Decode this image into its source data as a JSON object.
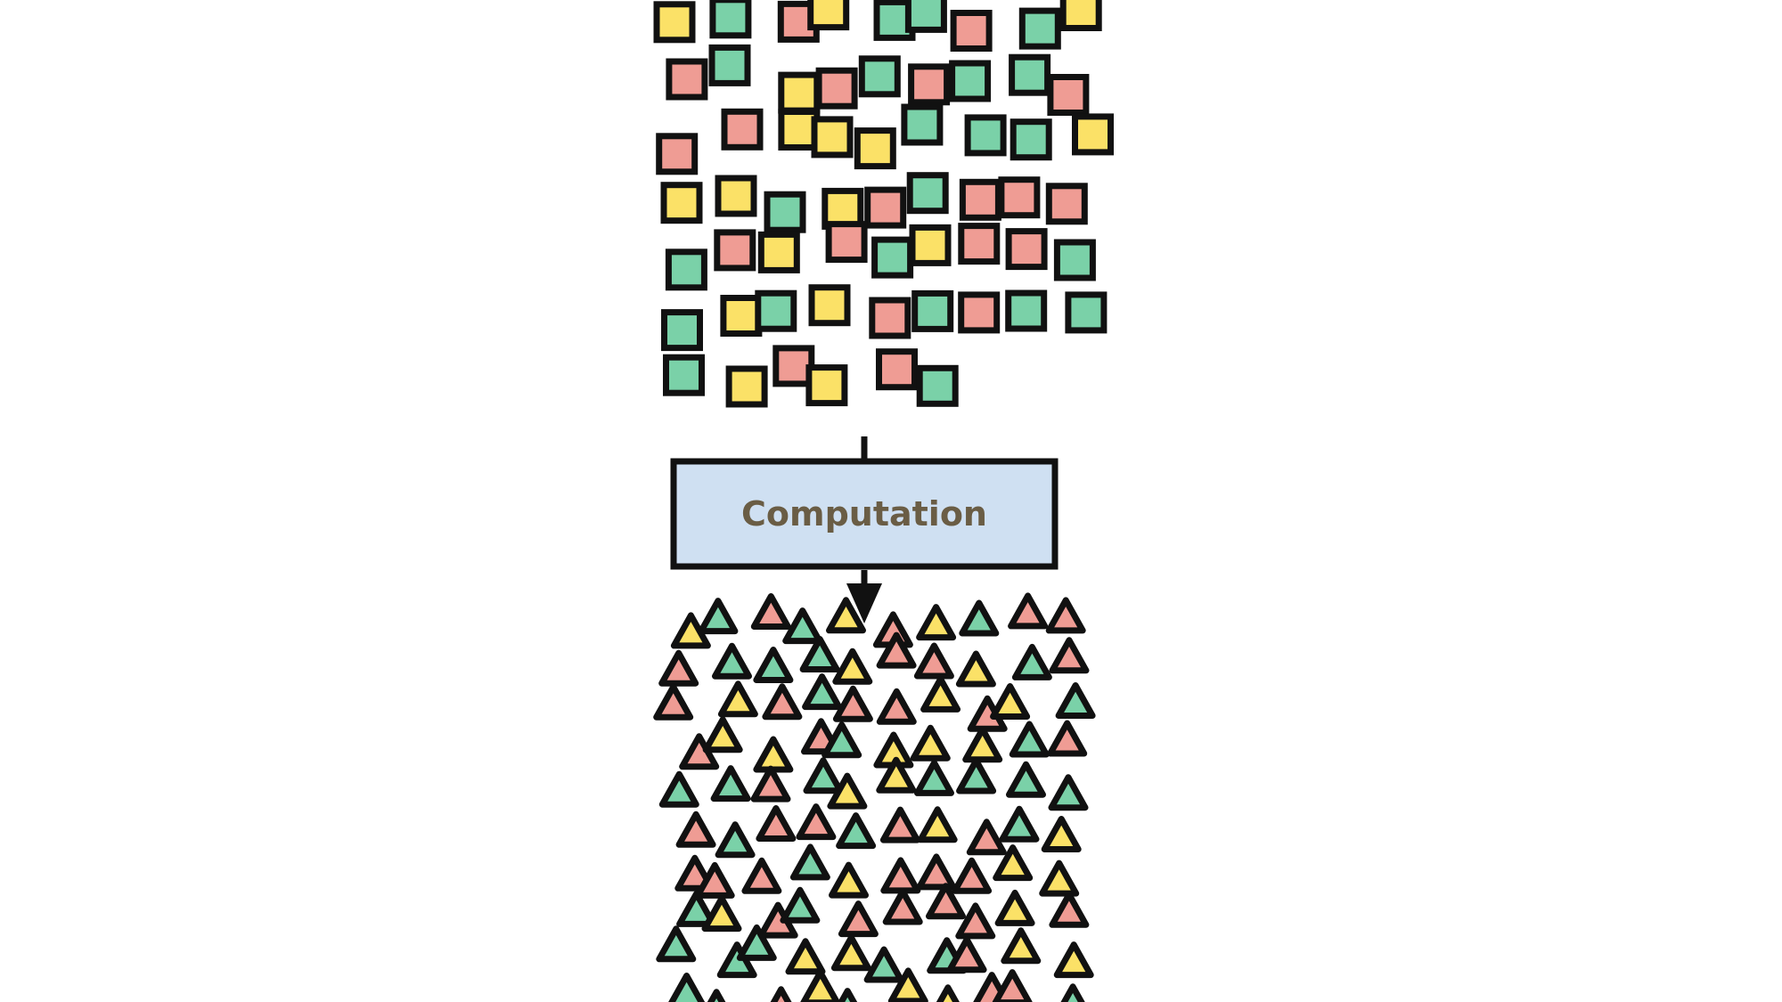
{
  "process": {
    "label": "Computation"
  },
  "colors": {
    "green": "#7ad1a8",
    "pink": "#ef9c94",
    "yellow": "#fbe167",
    "box_fill": "#cfe0f2",
    "label_text": "#6a5d45",
    "stroke": "#111111"
  },
  "inputs": {
    "shape": "square",
    "count": 60
  },
  "outputs": {
    "shape": "triangle",
    "count": 100
  }
}
